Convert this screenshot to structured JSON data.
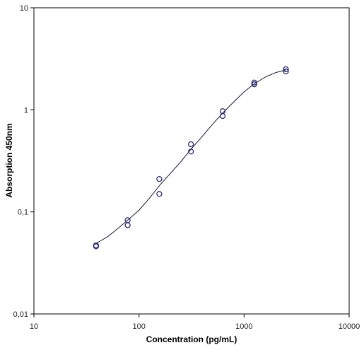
{
  "chart_data": {
    "type": "scatter",
    "title": "",
    "xlabel": "Concentration (pg/mL)",
    "ylabel": "Absorption 450nm",
    "x_scale": "log",
    "y_scale": "log",
    "xlim": [
      10,
      10000
    ],
    "ylim": [
      0.01,
      10
    ],
    "x_ticks": [
      "10",
      "100",
      "1000",
      "10000"
    ],
    "y_ticks": [
      "0,01",
      "0,1",
      "1",
      "10"
    ],
    "grid": false,
    "legend": "none",
    "colors": {
      "points": "#2b2b6e",
      "curve": "#1a1a2e",
      "axes": "#000000"
    },
    "series": [
      {
        "style": "markers",
        "points": [
          [
            39,
            0.046
          ],
          [
            39,
            0.047
          ],
          [
            78,
            0.074
          ],
          [
            78,
            0.083
          ],
          [
            156,
            0.15
          ],
          [
            156,
            0.21
          ],
          [
            312,
            0.39
          ],
          [
            312,
            0.46
          ],
          [
            625,
            0.87
          ],
          [
            625,
            0.97
          ],
          [
            1250,
            1.78
          ],
          [
            1250,
            1.85
          ],
          [
            2500,
            2.38
          ],
          [
            2500,
            2.5
          ]
        ]
      },
      {
        "style": "line",
        "points": [
          [
            39,
            0.049
          ],
          [
            50,
            0.057
          ],
          [
            60,
            0.066
          ],
          [
            78,
            0.083
          ],
          [
            100,
            0.104
          ],
          [
            125,
            0.135
          ],
          [
            156,
            0.18
          ],
          [
            200,
            0.24
          ],
          [
            250,
            0.31
          ],
          [
            312,
            0.41
          ],
          [
            400,
            0.55
          ],
          [
            500,
            0.72
          ],
          [
            625,
            0.93
          ],
          [
            800,
            1.2
          ],
          [
            1000,
            1.5
          ],
          [
            1250,
            1.8
          ],
          [
            1600,
            2.1
          ],
          [
            2000,
            2.32
          ],
          [
            2500,
            2.46
          ]
        ]
      }
    ]
  }
}
